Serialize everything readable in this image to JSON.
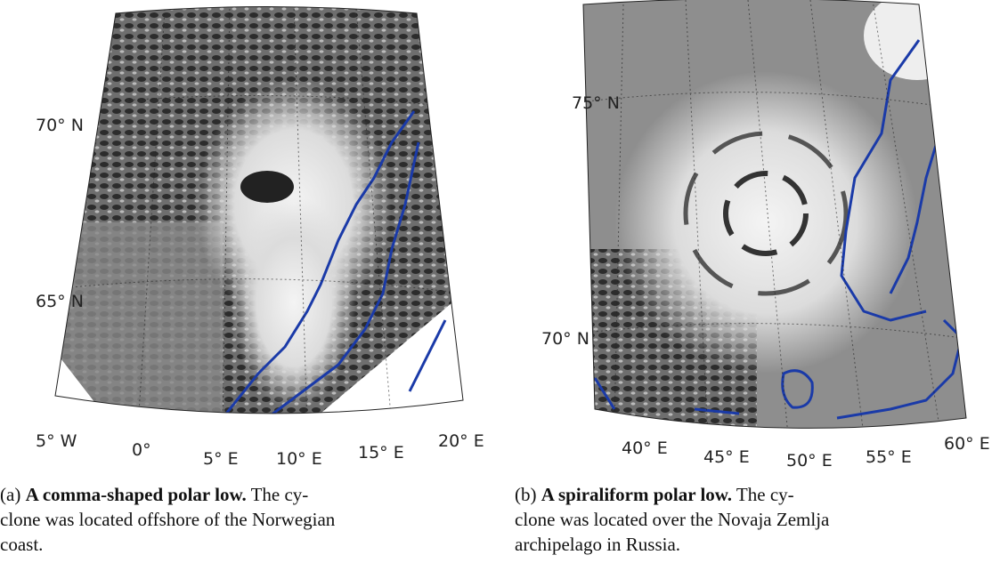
{
  "panels": [
    {
      "lat_labels": [
        "70° N",
        "65° N"
      ],
      "lon_labels": [
        "5° W",
        "0°",
        "5° E",
        "10° E",
        "15° E",
        "20° E"
      ],
      "caption": {
        "label": "(a)",
        "title": "A comma-shaped polar low.",
        "lines": [
          "The cy-",
          "clone was located offshore of the Norwegian",
          "coast."
        ]
      }
    },
    {
      "lat_labels": [
        "75° N",
        "70° N"
      ],
      "lon_labels": [
        "40° E",
        "45° E",
        "50° E",
        "55° E",
        "60° E"
      ],
      "caption": {
        "label": "(b)",
        "title": "A spiraliform polar low.",
        "lines": [
          "The cy-",
          "clone was located over the Novaja Zemlja",
          "archipelago in Russia."
        ]
      }
    }
  ]
}
